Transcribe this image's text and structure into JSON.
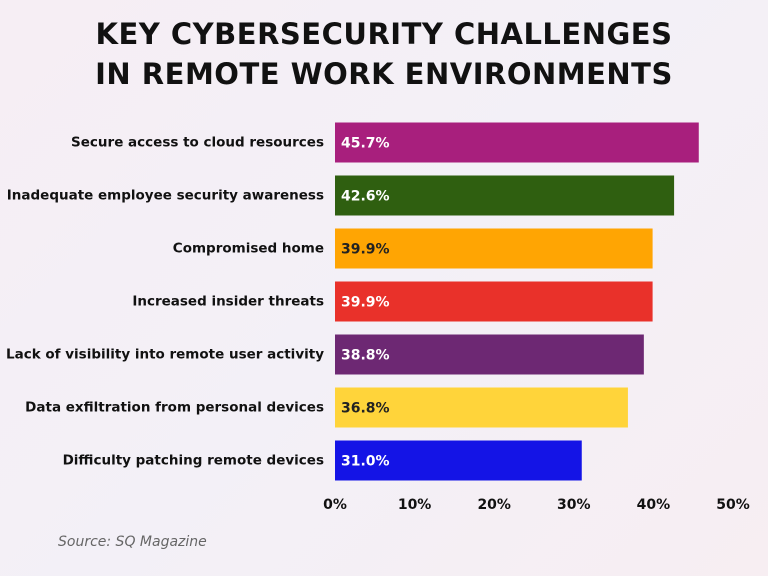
{
  "chart_data": {
    "type": "bar",
    "orientation": "horizontal",
    "title": "KEY CYBERSECURITY CHALLENGES IN REMOTE WORK ENVIRONMENTS",
    "categories": [
      "Secure access to cloud resources",
      "Inadequate employee security awareness",
      "Compromised home",
      "Increased insider threats",
      "Lack of visibility into remote user activity",
      "Data exfiltration from personal devices",
      "Difficulty patching remote devices"
    ],
    "values": [
      45.7,
      42.6,
      39.9,
      39.9,
      38.8,
      36.8,
      31.0
    ],
    "value_labels": [
      "45.7%",
      "42.6%",
      "39.9%",
      "39.9%",
      "38.8%",
      "36.8%",
      "31.0%"
    ],
    "colors": [
      "#a81f7d",
      "#2f5f10",
      "#ffa503",
      "#e9312a",
      "#6d2873",
      "#ffd43a",
      "#1414e6"
    ],
    "xlim": [
      0,
      50
    ],
    "xticks": [
      {
        "value": 0,
        "label": "0%"
      },
      {
        "value": 10,
        "label": "10%"
      },
      {
        "value": 20,
        "label": "20%"
      },
      {
        "value": 30,
        "label": "30%"
      },
      {
        "value": 40,
        "label": "40%"
      },
      {
        "value": 50,
        "label": "50%"
      }
    ],
    "grid": false,
    "source": "Source: SQ Magazine"
  }
}
